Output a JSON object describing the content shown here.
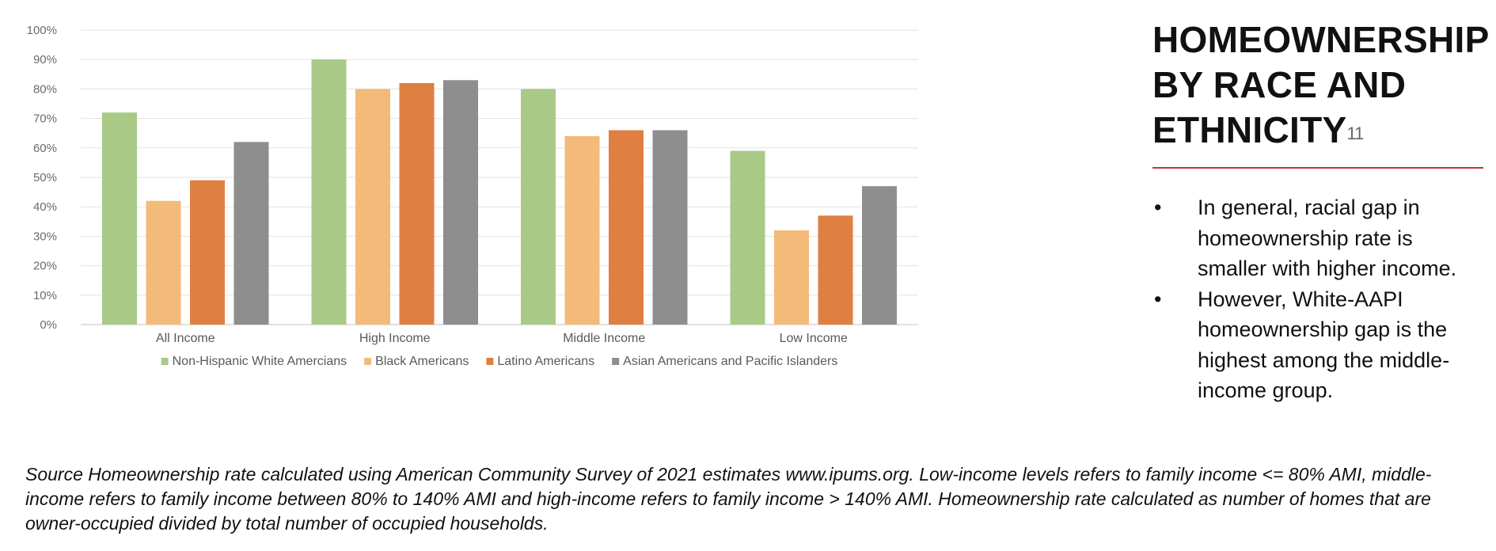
{
  "chart_data": {
    "type": "bar",
    "categories": [
      "All Income",
      "High Income",
      "Middle Income",
      "Low Income"
    ],
    "series": [
      {
        "name": "Non-Hispanic White Amercians",
        "color": "#a9c987",
        "values": [
          72,
          90,
          80,
          59
        ]
      },
      {
        "name": "Black Americans",
        "color": "#f4ba7a",
        "values": [
          42,
          80,
          64,
          32
        ]
      },
      {
        "name": "Latino Americans",
        "color": "#df7f41",
        "values": [
          49,
          82,
          66,
          37
        ]
      },
      {
        "name": "Asian Americans and Pacific Islanders",
        "color": "#8e8e8e",
        "values": [
          62,
          83,
          66,
          47
        ]
      }
    ],
    "ylim": [
      0,
      100
    ],
    "y_ticks": [
      0,
      10,
      20,
      30,
      40,
      50,
      60,
      70,
      80,
      90,
      100
    ],
    "y_tick_labels": [
      "0%",
      "10%",
      "20%",
      "30%",
      "40%",
      "50%",
      "60%",
      "70%",
      "80%",
      "90%",
      "100%"
    ],
    "grid": true,
    "legend_position": "bottom"
  },
  "side": {
    "title": "HOMEOWNERSHIP BY RACE AND ETHNICITY",
    "footnote_ref": "11",
    "bullets": [
      "In general, racial gap in homeownership rate is smaller with higher income.",
      "However, White-AAPI homeownership gap is the highest among the middle-income group."
    ],
    "bullet_symbol": "•",
    "rule_color": "#c0392b"
  },
  "source_note": "Source Homeownership rate calculated using American Community Survey of 2021 estimates www.ipums.org. Low-income levels refers to family income <= 80% AMI, middle-income refers to family income between 80% to 140% AMI and high-income refers to family income > 140% AMI. Homeownership rate calculated as number of homes that are owner-occupied divided by total number of occupied households."
}
